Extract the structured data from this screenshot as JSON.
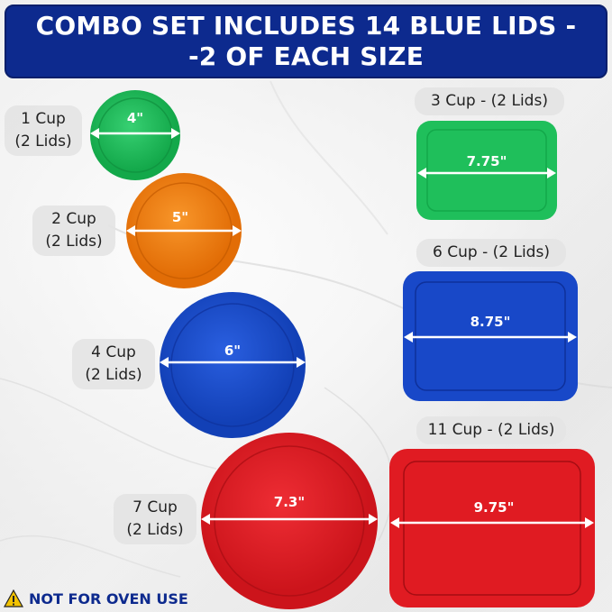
{
  "banner": {
    "line1": "COMBO SET INCLUDES 14 BLUE LIDS -",
    "line2": "-2 OF EACH SIZE"
  },
  "round_lids": [
    {
      "cup": "1 Cup",
      "count": "(2 Lids)",
      "diameter": "4\"",
      "color": "#1fbf5b"
    },
    {
      "cup": "2 Cup",
      "count": "(2 Lids)",
      "diameter": "5\"",
      "color": "#f07d11"
    },
    {
      "cup": "4 Cup",
      "count": "(2 Lids)",
      "diameter": "6\"",
      "color": "#1848c8"
    },
    {
      "cup": "7 Cup",
      "count": "(2 Lids)",
      "diameter": "7.3\"",
      "color": "#e01b22"
    }
  ],
  "rect_lids": [
    {
      "label": "3 Cup - (2 Lids)",
      "width": "7.75\"",
      "color": "#1fbf5b"
    },
    {
      "label": "6 Cup - (2 Lids)",
      "width": "8.75\"",
      "color": "#1848c8"
    },
    {
      "label": "11 Cup - (2 Lids)",
      "width": "9.75\"",
      "color": "#e01b22"
    }
  ],
  "warning": {
    "icon": "warning-triangle-icon",
    "text": "NOT FOR OVEN USE"
  }
}
